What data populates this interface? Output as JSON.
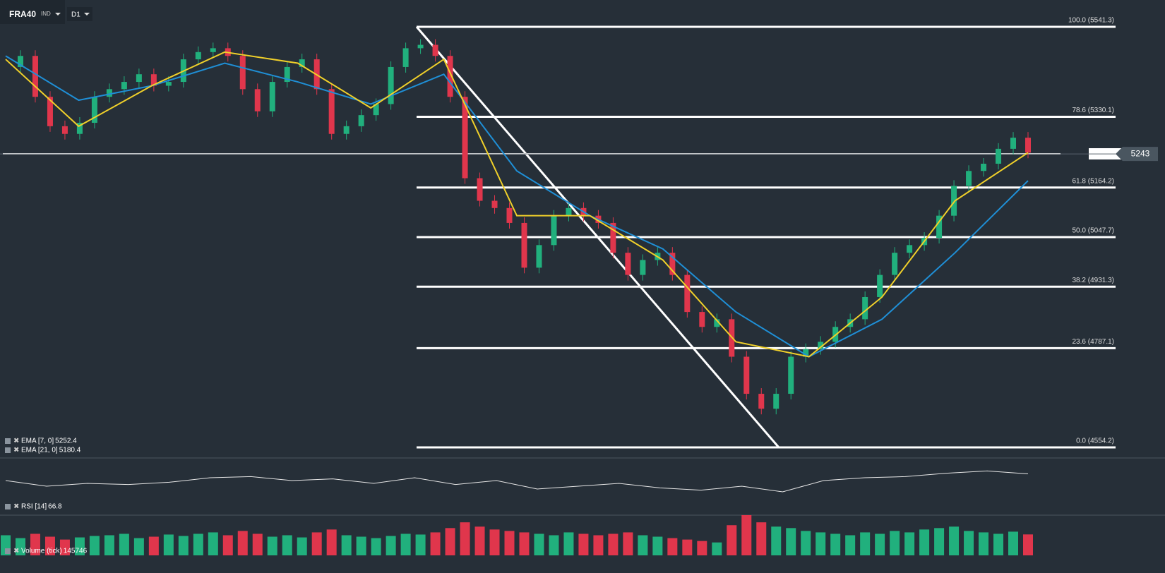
{
  "toolbar": {
    "symbol": "FRA40",
    "instrument_type": "IND",
    "timeframe": "D1"
  },
  "price_tag": 5243.0,
  "fib_levels": [
    {
      "value": 5541.3,
      "label": "100.0 (5541.3)"
    },
    {
      "value": 5330.1,
      "label": "78.6 (5330.1)"
    },
    {
      "value": 5164.2,
      "label": "61.8 (5164.2)"
    },
    {
      "value": 5047.7,
      "label": "50.0 (5047.7)"
    },
    {
      "value": 4931.3,
      "label": "38.2 (4931.3)"
    },
    {
      "value": 4787.1,
      "label": "23.6 (4787.1)"
    },
    {
      "value": 4554.2,
      "label": "0.0 (4554.2)"
    }
  ],
  "closes": [
    5447,
    5473,
    5377,
    5308,
    5290,
    5316,
    5377,
    5395,
    5412,
    5430,
    5403,
    5412,
    5465,
    5482,
    5491,
    5473,
    5395,
    5343,
    5412,
    5447,
    5465,
    5395,
    5290,
    5308,
    5334,
    5360,
    5447,
    5491,
    5499,
    5473,
    5377,
    5186,
    5133,
    5116,
    5081,
    4976,
    5029,
    5098,
    5116,
    5098,
    5081,
    5011,
    4959,
    4994,
    5011,
    4959,
    4872,
    4837,
    4855,
    4767,
    4680,
    4645,
    4680,
    4767,
    4785,
    4802,
    4837,
    4855,
    4907,
    4959,
    5011,
    5029,
    5046,
    5098,
    5168,
    5203,
    5220,
    5255,
    5281,
    5246
  ],
  "ema7": [
    5465,
    5308,
    5403,
    5482,
    5456,
    5351,
    5465,
    5098,
    5098,
    4994,
    4802,
    4767,
    4907,
    5133,
    5246
  ],
  "ema21": [
    5473,
    5369,
    5403,
    5456,
    5412,
    5360,
    5430,
    5203,
    5098,
    5020,
    4872,
    4767,
    4855,
    5011,
    5180
  ],
  "rsi": [
    55,
    45,
    50,
    48,
    52,
    60,
    62,
    55,
    58,
    50,
    60,
    48,
    55,
    40,
    45,
    50,
    42,
    38,
    45,
    35,
    55,
    60,
    62,
    68,
    72,
    66.8
  ],
  "volume": [
    140000,
    120000,
    150000,
    130000,
    110000,
    125000,
    135000,
    140000,
    150000,
    120000,
    130000,
    145000,
    135000,
    150000,
    160000,
    140000,
    170000,
    150000,
    130000,
    140000,
    125000,
    160000,
    180000,
    140000,
    130000,
    120000,
    135000,
    150000,
    145000,
    160000,
    190000,
    230000,
    200000,
    180000,
    170000,
    160000,
    150000,
    140000,
    160000,
    150000,
    140000,
    150000,
    160000,
    140000,
    130000,
    120000,
    110000,
    100000,
    90000,
    210000,
    280000,
    230000,
    200000,
    190000,
    170000,
    160000,
    150000,
    140000,
    160000,
    150000,
    170000,
    160000,
    180000,
    190000,
    200000,
    170000,
    160000,
    150000,
    165000,
    145746
  ],
  "legend": [
    {
      "label": "EMA [7, 0]",
      "value": 5252.4
    },
    {
      "label": "EMA [21, 0]",
      "value": 5180.4
    },
    {
      "label": "RSI [14]",
      "value": 66.8
    },
    {
      "label": "Volume (tick)",
      "value": 145746
    }
  ]
}
